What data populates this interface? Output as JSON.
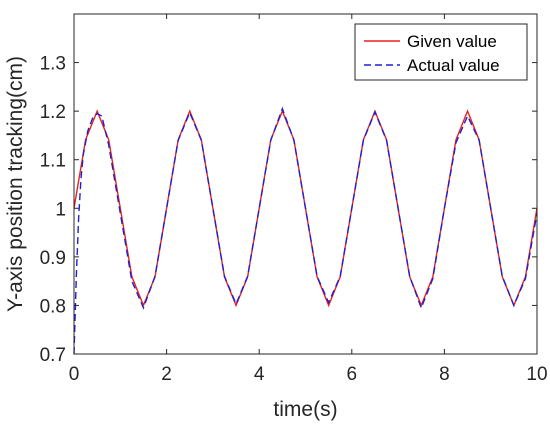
{
  "chart_data": {
    "type": "line",
    "title": "",
    "xlabel": "time(s)",
    "ylabel": "Y-axis position tracking(cm)",
    "xlim": [
      0,
      10
    ],
    "ylim": [
      0.7,
      1.4
    ],
    "xticks": [
      0,
      2,
      4,
      6,
      8,
      10
    ],
    "yticks": [
      0.7,
      0.8,
      0.9,
      1,
      1.1,
      1.2,
      1.3
    ],
    "xtick_labels": [
      "0",
      "2",
      "4",
      "6",
      "8",
      "10"
    ],
    "ytick_labels": [
      "0.7",
      "0.8",
      "0.9",
      "1",
      "1.1",
      "1.2",
      "1.3"
    ],
    "grid": false,
    "legend_position": "top-right",
    "series": [
      {
        "name": "Given value",
        "color": "#e8231a",
        "style": "solid",
        "x": [
          0,
          0.25,
          0.5,
          0.75,
          1,
          1.25,
          1.5,
          1.75,
          2,
          2.25,
          2.5,
          2.75,
          3,
          3.25,
          3.5,
          3.75,
          4,
          4.25,
          4.5,
          4.75,
          5,
          5.25,
          5.5,
          5.75,
          6,
          6.25,
          6.5,
          6.75,
          7,
          7.25,
          7.5,
          7.75,
          8,
          8.25,
          8.5,
          8.75,
          9,
          9.25,
          9.5,
          9.75,
          10
        ],
        "y": [
          1.0,
          1.141,
          1.2,
          1.141,
          1.0,
          0.859,
          0.8,
          0.859,
          1.0,
          1.141,
          1.2,
          1.141,
          1.0,
          0.859,
          0.8,
          0.859,
          1.0,
          1.141,
          1.2,
          1.141,
          1.0,
          0.859,
          0.8,
          0.859,
          1.0,
          1.141,
          1.2,
          1.141,
          1.0,
          0.859,
          0.8,
          0.859,
          1.0,
          1.141,
          1.2,
          1.141,
          1.0,
          0.859,
          0.8,
          0.859,
          1.0
        ]
      },
      {
        "name": "Actual value",
        "color": "#1f1fd6",
        "style": "dashed",
        "x": [
          0,
          0.05,
          0.1,
          0.15,
          0.2,
          0.3,
          0.4,
          0.5,
          0.6,
          0.75,
          1,
          1.25,
          1.5,
          1.75,
          2,
          2.25,
          2.5,
          2.75,
          3,
          3.25,
          3.5,
          3.75,
          4,
          4.25,
          4.5,
          4.75,
          5,
          5.25,
          5.5,
          5.75,
          6,
          6.25,
          6.5,
          6.75,
          7,
          7.25,
          7.5,
          7.75,
          8,
          8.25,
          8.5,
          8.75,
          9,
          9.25,
          9.5,
          9.75,
          10
        ],
        "y": [
          0.7,
          0.86,
          0.98,
          1.06,
          1.11,
          1.16,
          1.185,
          1.195,
          1.19,
          1.13,
          0.99,
          0.85,
          0.795,
          0.86,
          1.0,
          1.14,
          1.197,
          1.14,
          1.0,
          0.86,
          0.803,
          0.86,
          1.0,
          1.14,
          1.205,
          1.14,
          1.0,
          0.86,
          0.806,
          0.86,
          1.0,
          1.14,
          1.198,
          1.14,
          1.0,
          0.86,
          0.795,
          0.855,
          1.0,
          1.135,
          1.19,
          1.14,
          1.0,
          0.86,
          0.8,
          0.855,
          0.99
        ]
      }
    ]
  }
}
